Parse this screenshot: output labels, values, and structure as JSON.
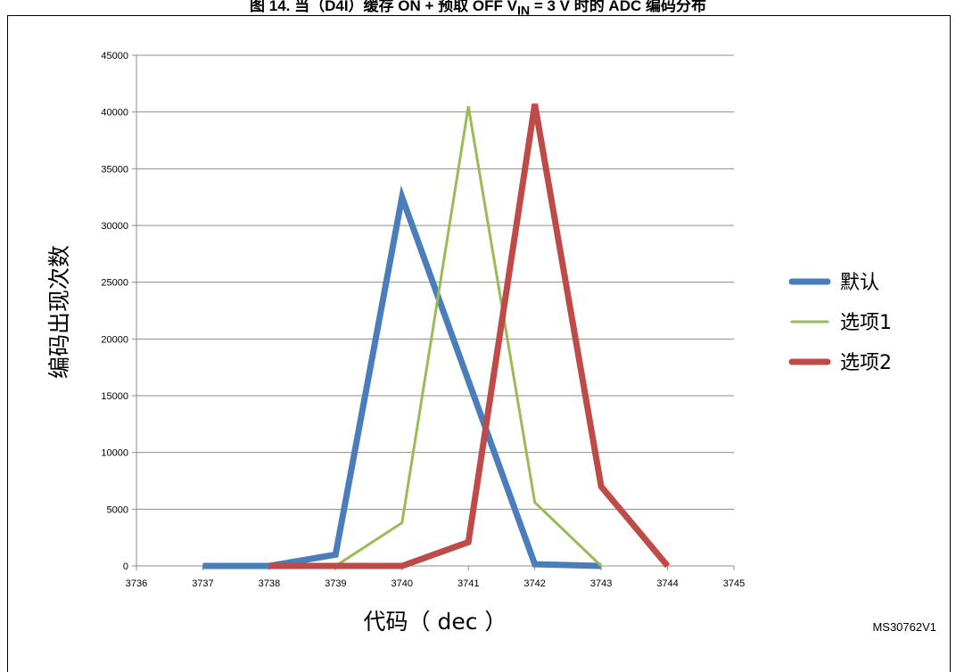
{
  "figure": {
    "title": "图 14. 当（D4I）缓存 ON + 预取 OFF V",
    "title_sub": "IN",
    "title_rest": " = 3 V 时的 ADC 编码分布",
    "id_label": "MS30762V1"
  },
  "chart_data": {
    "type": "line",
    "xlabel": "代码（ dec ）",
    "ylabel": "编码出现次数",
    "xlim": [
      3736,
      3745
    ],
    "ylim": [
      0,
      45000
    ],
    "x_ticks": [
      "3736",
      "3737",
      "3738",
      "3739",
      "3740",
      "3741",
      "3742",
      "3743",
      "3744",
      "3745"
    ],
    "y_ticks": [
      "0",
      "5000",
      "10000",
      "15000",
      "20000",
      "25000",
      "30000",
      "35000",
      "40000",
      "45000"
    ],
    "grid": true,
    "legend_position": "right",
    "series": [
      {
        "name": "默认",
        "color": "#4a7ebb",
        "width": "thick",
        "x": [
          3737,
          3738,
          3739,
          3740,
          3742,
          3743
        ],
        "y": [
          0,
          0,
          1000,
          32500,
          150,
          0
        ]
      },
      {
        "name": "选项1",
        "color": "#9bbb59",
        "width": "thin",
        "x": [
          3739,
          3740,
          3741,
          3742,
          3743
        ],
        "y": [
          0,
          3800,
          40500,
          5600,
          0
        ]
      },
      {
        "name": "选项2",
        "color": "#be4b48",
        "width": "thick",
        "x": [
          3738,
          3739,
          3740,
          3741,
          3742,
          3743,
          3744
        ],
        "y": [
          0,
          0,
          0,
          2100,
          40700,
          7000,
          0
        ]
      }
    ]
  }
}
